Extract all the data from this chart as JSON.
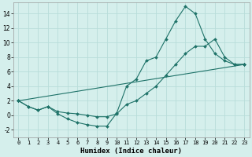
{
  "xlabel": "Humidex (Indice chaleur)",
  "background_color": "#d5efec",
  "grid_color": "#b8ddd9",
  "line_color": "#1e7268",
  "xlim": [
    -0.5,
    23.5
  ],
  "ylim": [
    -3,
    15.5
  ],
  "xticks": [
    0,
    1,
    2,
    3,
    4,
    5,
    6,
    7,
    8,
    9,
    10,
    11,
    12,
    13,
    14,
    15,
    16,
    17,
    18,
    19,
    20,
    21,
    22,
    23
  ],
  "yticks": [
    -2,
    0,
    2,
    4,
    6,
    8,
    10,
    12,
    14
  ],
  "curve1_x": [
    0,
    1,
    2,
    3,
    4,
    5,
    6,
    7,
    8,
    9,
    10,
    11,
    12,
    13,
    14,
    15,
    16,
    17,
    18,
    19,
    20,
    21,
    22,
    23
  ],
  "curve1_y": [
    2,
    1.2,
    0.7,
    1.2,
    0.2,
    -0.5,
    -1.0,
    -1.3,
    -1.5,
    -1.5,
    0.3,
    4.0,
    5.0,
    7.5,
    8.0,
    10.5,
    13.0,
    15.0,
    14.0,
    10.5,
    8.5,
    7.5,
    7.0,
    7.0
  ],
  "curve2_x": [
    0,
    1,
    2,
    3,
    4,
    5,
    6,
    7,
    8,
    9,
    10,
    11,
    12,
    13,
    14,
    15,
    16,
    17,
    18,
    19,
    20,
    21,
    22,
    23
  ],
  "curve2_y": [
    2,
    1.2,
    0.7,
    1.2,
    0.5,
    0.3,
    0.2,
    0.0,
    -0.2,
    -0.2,
    0.2,
    1.5,
    2.0,
    3.0,
    4.0,
    5.5,
    7.0,
    8.5,
    9.5,
    9.5,
    10.5,
    8.0,
    7.0,
    7.0
  ],
  "curve3_x": [
    0,
    23
  ],
  "curve3_y": [
    2,
    7
  ]
}
